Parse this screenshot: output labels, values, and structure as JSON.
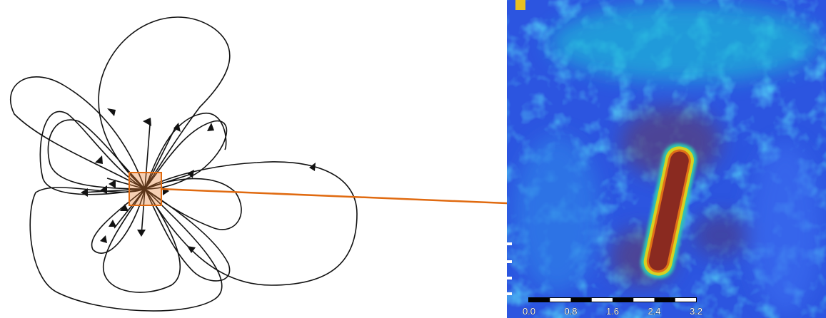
{
  "scale_bar": {
    "labels": [
      "0.0",
      "0.8",
      "1.6",
      "2.4",
      "3.2"
    ]
  }
}
